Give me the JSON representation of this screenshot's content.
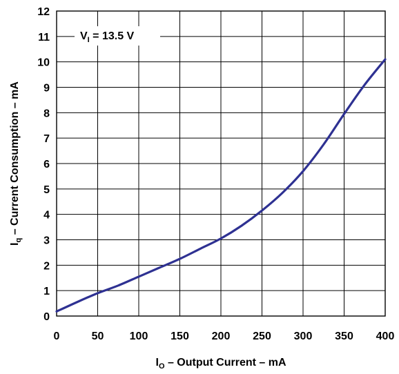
{
  "chart_data": {
    "type": "line",
    "title": "",
    "annotation": {
      "main": "V",
      "sub": "I",
      "rest": " = 13.5 V"
    },
    "xlabel": {
      "main": "I",
      "sub": "O",
      "rest": " – Output Current – mA"
    },
    "ylabel": {
      "main": "I",
      "sub": "q",
      "rest": " – Current Consumption – mA"
    },
    "xlim": [
      0,
      400
    ],
    "ylim": [
      0,
      12
    ],
    "xticks": [
      0,
      50,
      100,
      150,
      200,
      250,
      300,
      350,
      400
    ],
    "yticks": [
      0,
      1,
      2,
      3,
      4,
      5,
      6,
      7,
      8,
      9,
      10,
      11,
      12
    ],
    "grid": true,
    "series": [
      {
        "color": "#2e3192",
        "x": [
          0,
          25,
          50,
          75,
          100,
          125,
          150,
          175,
          200,
          225,
          250,
          275,
          300,
          325,
          350,
          375,
          400
        ],
        "y": [
          0.18,
          0.55,
          0.9,
          1.2,
          1.55,
          1.9,
          2.25,
          2.65,
          3.05,
          3.55,
          4.15,
          4.85,
          5.7,
          6.75,
          7.95,
          9.1,
          10.1
        ]
      }
    ]
  }
}
